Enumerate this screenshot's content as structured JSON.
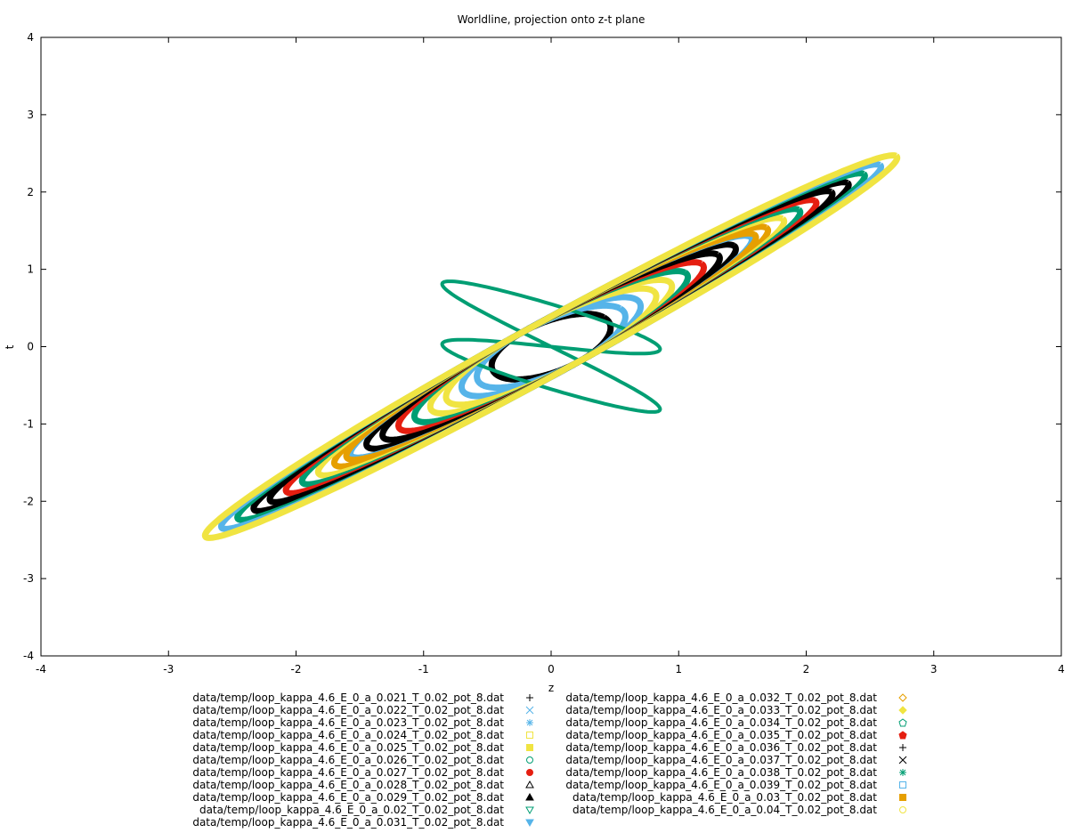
{
  "chart_data": {
    "type": "scatter",
    "title": "Worldline, projection onto z-t plane",
    "xlabel": "z",
    "ylabel": "t",
    "xlim": [
      -4,
      4
    ],
    "ylim": [
      -4,
      4
    ],
    "xticks": [
      "-4",
      "-3",
      "-2",
      "-1",
      "0",
      "1",
      "2",
      "3",
      "4"
    ],
    "yticks": [
      "-4",
      "-3",
      "-2",
      "-1",
      "0",
      "1",
      "2",
      "3",
      "4"
    ],
    "grid": false,
    "legend_position": "below",
    "series": [
      {
        "name": "data/temp/loop_kappa_4.6_E_0_a_0.021_T_0.02_pot_8.dat",
        "color": "#000000",
        "marker": "plus",
        "extent": 0.52
      },
      {
        "name": "data/temp/loop_kappa_4.6_E_0_a_0.022_T_0.02_pot_8.dat",
        "color": "#56b4e9",
        "marker": "cross",
        "extent": 0.68
      },
      {
        "name": "data/temp/loop_kappa_4.6_E_0_a_0.023_T_0.02_pot_8.dat",
        "color": "#56b4e9",
        "marker": "star",
        "extent": 0.84
      },
      {
        "name": "data/temp/loop_kappa_4.6_E_0_a_0.024_T_0.02_pot_8.dat",
        "color": "#f0e442",
        "marker": "square-open",
        "extent": 1.0
      },
      {
        "name": "data/temp/loop_kappa_4.6_E_0_a_0.025_T_0.02_pot_8.dat",
        "color": "#f0e442",
        "marker": "square-filled",
        "extent": 1.16
      },
      {
        "name": "data/temp/loop_kappa_4.6_E_0_a_0.026_T_0.02_pot_8.dat",
        "color": "#009e73",
        "marker": "circle-open",
        "extent": 1.32
      },
      {
        "name": "data/temp/loop_kappa_4.6_E_0_a_0.027_T_0.02_pot_8.dat",
        "color": "#e51e10",
        "marker": "circle-filled",
        "extent": 1.48
      },
      {
        "name": "data/temp/loop_kappa_4.6_E_0_a_0.028_T_0.02_pot_8.dat",
        "color": "#000000",
        "marker": "triangle-open",
        "extent": 1.64
      },
      {
        "name": "data/temp/loop_kappa_4.6_E_0_a_0.029_T_0.02_pot_8.dat",
        "color": "#000000",
        "marker": "triangle-filled",
        "extent": 1.8
      },
      {
        "name": "data/temp/loop_kappa_4.6_E_0_a_0.02_T_0.02_pot_8.dat",
        "color": "#009e73",
        "marker": "tridown-open",
        "extent": 0.9,
        "figure_eight": true
      },
      {
        "name": "data/temp/loop_kappa_4.6_E_0_a_0.031_T_0.02_pot_8.dat",
        "color": "#56b4e9",
        "marker": "tridown-filled",
        "extent": 1.96
      },
      {
        "name": "data/temp/loop_kappa_4.6_E_0_a_0.032_T_0.02_pot_8.dat",
        "color": "#e69f00",
        "marker": "diamond-open",
        "extent": 2.12
      },
      {
        "name": "data/temp/loop_kappa_4.6_E_0_a_0.033_T_0.02_pot_8.dat",
        "color": "#f0e442",
        "marker": "diamond-filled",
        "extent": 2.28
      },
      {
        "name": "data/temp/loop_kappa_4.6_E_0_a_0.034_T_0.02_pot_8.dat",
        "color": "#009e73",
        "marker": "pentagon-open",
        "extent": 2.44
      },
      {
        "name": "data/temp/loop_kappa_4.6_E_0_a_0.035_T_0.02_pot_8.dat",
        "color": "#e51e10",
        "marker": "pentagon-filled",
        "extent": 2.6
      },
      {
        "name": "data/temp/loop_kappa_4.6_E_0_a_0.036_T_0.02_pot_8.dat",
        "color": "#000000",
        "marker": "plus",
        "extent": 2.76
      },
      {
        "name": "data/temp/loop_kappa_4.6_E_0_a_0.037_T_0.02_pot_8.dat",
        "color": "#000000",
        "marker": "cross",
        "extent": 2.92
      },
      {
        "name": "data/temp/loop_kappa_4.6_E_0_a_0.038_T_0.02_pot_8.dat",
        "color": "#009e73",
        "marker": "star",
        "extent": 3.08
      },
      {
        "name": "data/temp/loop_kappa_4.6_E_0_a_0.039_T_0.02_pot_8.dat",
        "color": "#56b4e9",
        "marker": "square-open",
        "extent": 3.24
      },
      {
        "name": "data/temp/loop_kappa_4.6_E_0_a_0.03_T_0.02_pot_8.dat",
        "color": "#e69f00",
        "marker": "square-filled",
        "extent": 2.0
      },
      {
        "name": "data/temp/loop_kappa_4.6_E_0_a_0.04_T_0.02_pot_8.dat",
        "color": "#f0e442",
        "marker": "circle-open",
        "extent": 3.4
      }
    ]
  }
}
